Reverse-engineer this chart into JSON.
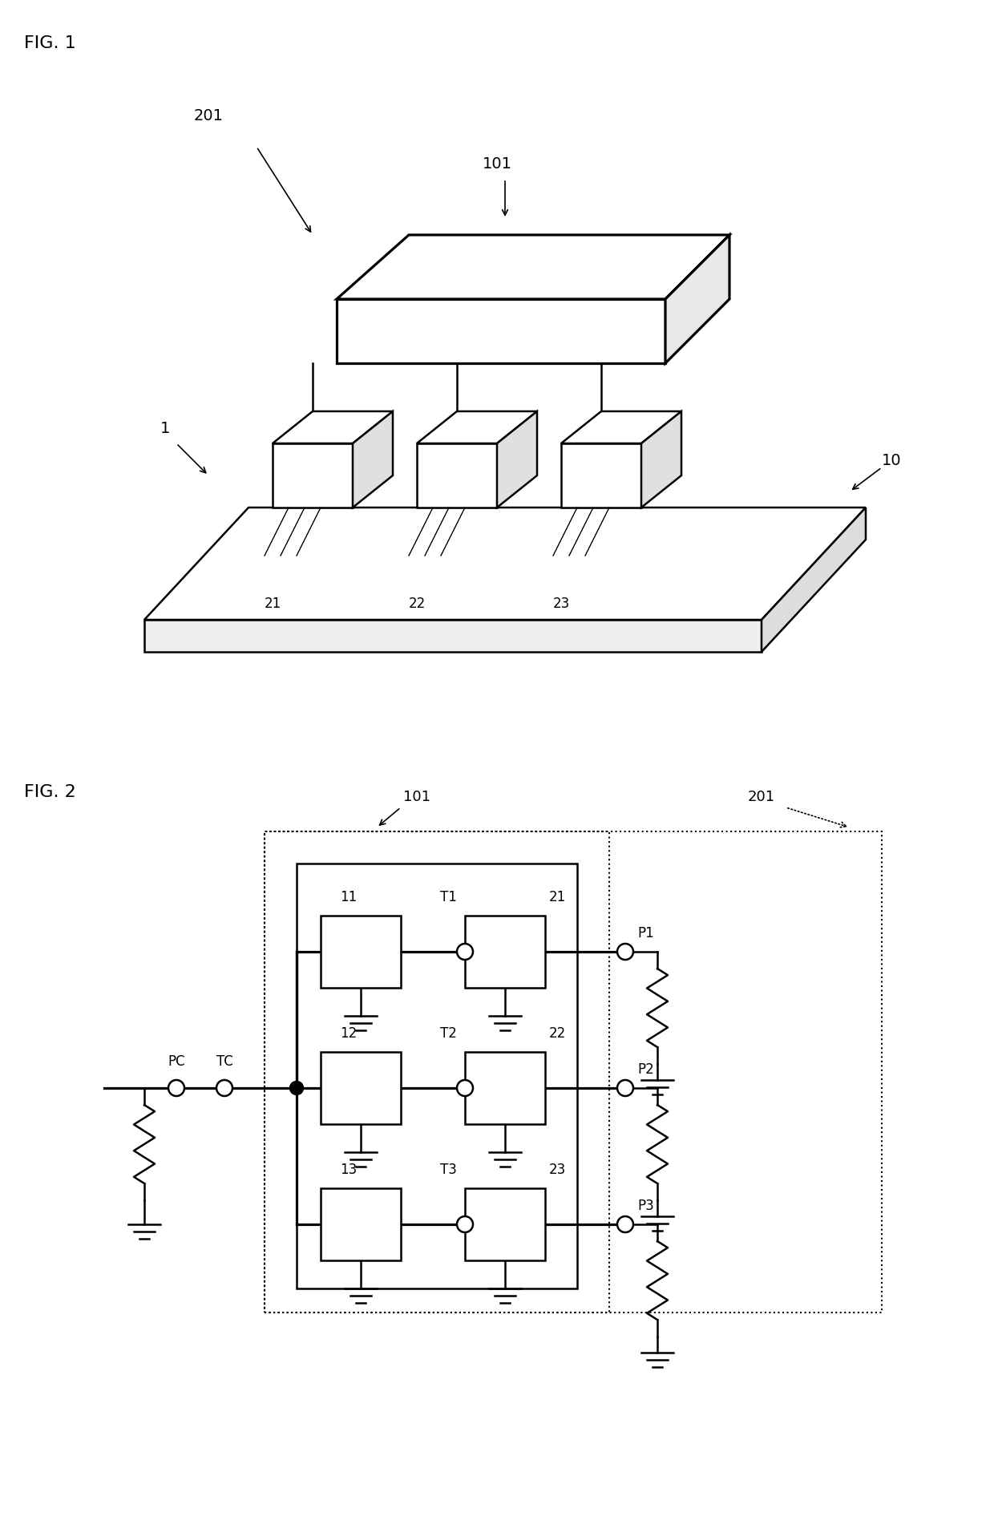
{
  "fig1_label": "FIG. 1",
  "fig2_label": "FIG. 2",
  "bg": "#ffffff",
  "lc": "#000000",
  "fig1": {
    "label_201": "201",
    "label_10": "10",
    "label_101": "101",
    "label_1": "1",
    "label_21": "21",
    "label_22": "22",
    "label_23": "23"
  },
  "fig2": {
    "label_101": "101",
    "label_201": "201",
    "label_11": "11",
    "label_12": "12",
    "label_13": "13",
    "label_T1": "T1",
    "label_T2": "T2",
    "label_T3": "T3",
    "label_21": "21",
    "label_22": "22",
    "label_23": "23",
    "label_P1": "P1",
    "label_P2": "P2",
    "label_P3": "P3",
    "label_PC": "PC",
    "label_TC": "TC"
  }
}
